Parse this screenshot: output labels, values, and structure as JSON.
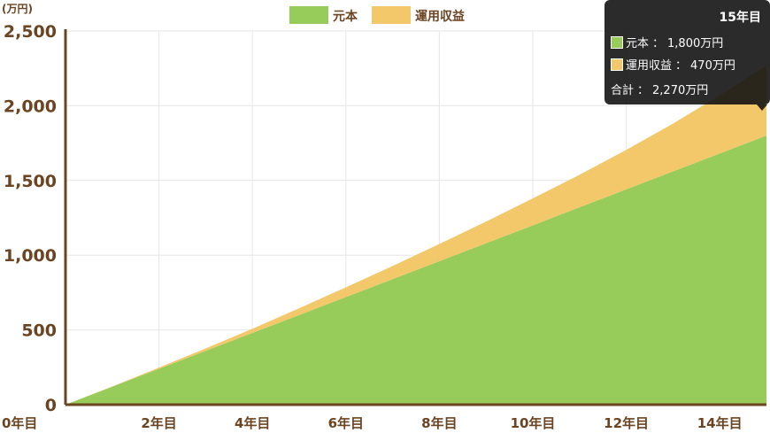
{
  "chart_data": {
    "type": "area",
    "stacked": true,
    "unit_label": "(万円)",
    "x": [
      0,
      1,
      2,
      3,
      4,
      5,
      6,
      7,
      8,
      9,
      10,
      11,
      12,
      13,
      14,
      15
    ],
    "x_tick_labels": [
      "0年目",
      "2年目",
      "4年目",
      "6年目",
      "8年目",
      "10年目",
      "12年目",
      "14年目"
    ],
    "x_tick_values": [
      0,
      2,
      4,
      6,
      8,
      10,
      12,
      14
    ],
    "xlim": [
      0,
      15
    ],
    "ylim": [
      0,
      2500
    ],
    "y_ticks": [
      0,
      500,
      1000,
      1500,
      2000,
      2500
    ],
    "y_tick_labels": [
      "0",
      "500",
      "1,000",
      "1,500",
      "2,000",
      "2,500"
    ],
    "grid": true,
    "legend_position": "top-center",
    "series": [
      {
        "name": "元本",
        "color": "#97cb5a",
        "values": [
          0,
          120,
          240,
          360,
          480,
          600,
          720,
          840,
          960,
          1080,
          1200,
          1320,
          1440,
          1560,
          1680,
          1800
        ]
      },
      {
        "name": "運用収益",
        "color": "#f3c86a",
        "values": [
          0,
          2,
          8,
          16,
          28,
          45,
          65,
          88,
          115,
          145,
          180,
          218,
          265,
          320,
          390,
          470
        ]
      }
    ]
  },
  "tooltip": {
    "title": "15年目",
    "rows": [
      {
        "label": "元本",
        "sep": "：",
        "value": "1,800万円",
        "color": "#97cb5a"
      },
      {
        "label": "運用収益",
        "sep": "：",
        "value": "470万円",
        "color": "#f3c86a"
      }
    ],
    "total_label": "合計",
    "total_sep": "：",
    "total_value": "2,270万円"
  }
}
